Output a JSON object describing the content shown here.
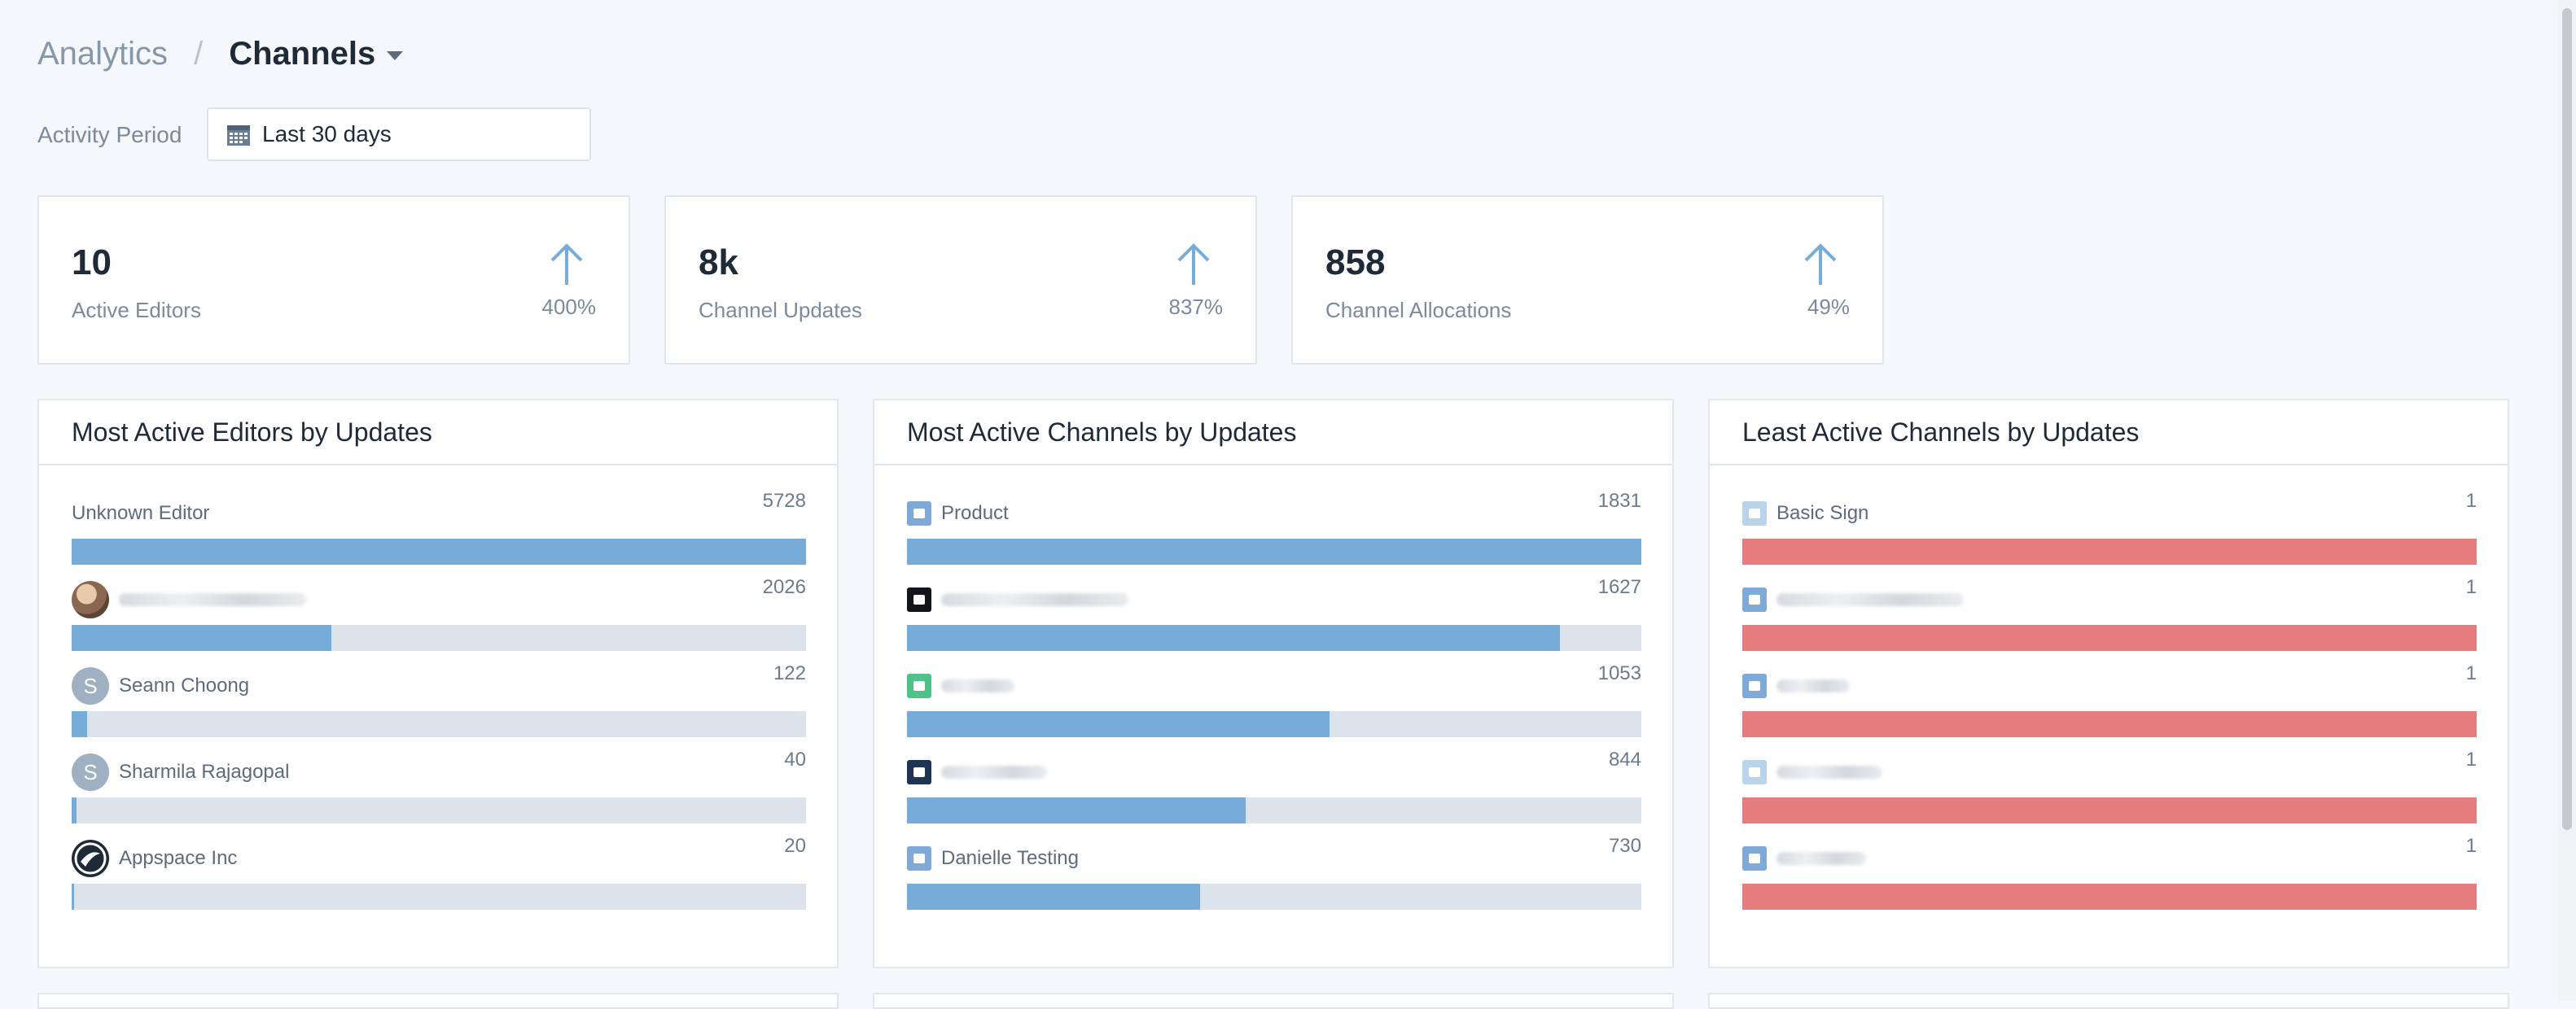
{
  "breadcrumb": {
    "root": "Analytics",
    "separator": "/",
    "current": "Channels"
  },
  "activity_period": {
    "label": "Activity Period",
    "value": "Last 30 days"
  },
  "stats": [
    {
      "value": "10",
      "label": "Active Editors",
      "change": "400%",
      "trend_icon": "arrow-up-icon"
    },
    {
      "value": "8k",
      "label": "Channel Updates",
      "change": "837%",
      "trend_icon": "arrow-up-icon"
    },
    {
      "value": "858",
      "label": "Channel Allocations",
      "change": "49%",
      "trend_icon": "arrow-up-icon"
    }
  ],
  "panels": {
    "editors": {
      "title": "Most Active Editors by Updates",
      "max": 5728,
      "items": [
        {
          "name": "Unknown Editor",
          "count": "5728",
          "value": 5728,
          "avatar": "none"
        },
        {
          "name": "",
          "count": "2026",
          "value": 2026,
          "avatar": "photo",
          "redacted": true
        },
        {
          "name": "Seann Choong",
          "count": "122",
          "value": 122,
          "avatar": "letter",
          "initial": "S"
        },
        {
          "name": "Sharmila Rajagopal",
          "count": "40",
          "value": 40,
          "avatar": "letter",
          "initial": "S"
        },
        {
          "name": "Appspace Inc",
          "count": "20",
          "value": 20,
          "avatar": "logo"
        }
      ]
    },
    "most_active": {
      "title": "Most Active Channels by Updates",
      "max": 1831,
      "items": [
        {
          "name": "Product",
          "count": "1831",
          "value": 1831,
          "icon_color": "#7fa9d6"
        },
        {
          "name": "",
          "count": "1627",
          "value": 1627,
          "icon_color": "#111418",
          "redacted": true
        },
        {
          "name": "",
          "count": "1053",
          "value": 1053,
          "icon_color": "#4fc28a",
          "redacted": true
        },
        {
          "name": "",
          "count": "844",
          "value": 844,
          "icon_color": "#1d3553",
          "redacted": true
        },
        {
          "name": "Danielle Testing",
          "count": "730",
          "value": 730,
          "icon_color": "#7fa9d6"
        }
      ]
    },
    "least_active": {
      "title": "Least Active Channels by Updates",
      "max": 1,
      "items": [
        {
          "name": "Basic Sign",
          "count": "1",
          "value": 1,
          "icon_color": "#b9d3ea"
        },
        {
          "name": "",
          "count": "1",
          "value": 1,
          "icon_color": "#7fa9d6",
          "redacted": true
        },
        {
          "name": "",
          "count": "1",
          "value": 1,
          "icon_color": "#7fa9d6",
          "redacted": true
        },
        {
          "name": "",
          "count": "1",
          "value": 1,
          "icon_color": "#b9d3ea",
          "redacted": true
        },
        {
          "name": "",
          "count": "1",
          "value": 1,
          "icon_color": "#7fa9d6",
          "redacted": true
        }
      ]
    }
  },
  "colors": {
    "bar": "#78acd8",
    "bar_low": "#e57c7e",
    "track": "#dde3ea"
  }
}
